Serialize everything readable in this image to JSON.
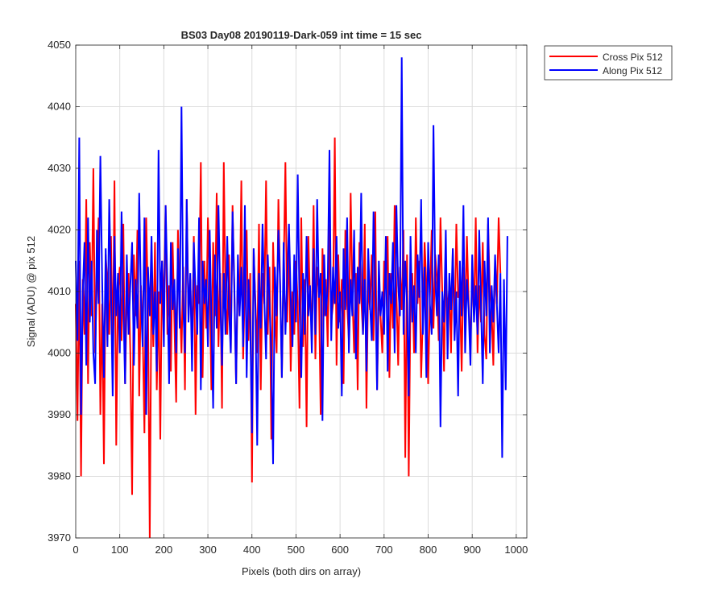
{
  "chart_data": {
    "type": "line",
    "title": "BS03 Day08 20190119-Dark-059 int time = 15 sec",
    "xlabel": "Pixels (both dirs on array)",
    "ylabel": "Signal (ADU) @ pix 512",
    "xlim": [
      0,
      1024
    ],
    "ylim": [
      3970,
      4050
    ],
    "xticks": [
      0,
      100,
      200,
      300,
      400,
      500,
      600,
      700,
      800,
      900,
      1000
    ],
    "yticks": [
      3970,
      3980,
      3990,
      4000,
      4010,
      4020,
      4030,
      4040,
      4050
    ],
    "grid": true,
    "legend_position": "outside-top-right",
    "x_step": 4,
    "series": [
      {
        "name": "Cross Pix 512",
        "color": "#ff0000",
        "values": [
          4008,
          3989,
          4015,
          3980,
          4012,
          4003,
          4025,
          3995,
          4018,
          4006,
          4030,
          4000,
          4012,
          4022,
          3990,
          4008,
          3982,
          4016,
          4011,
          4003,
          4019,
          3999,
          4028,
          3985,
          4010,
          4014,
          4002,
          4021,
          3995,
          4009,
          4013,
          4000,
          3977,
          4016,
          4006,
          4020,
          3993,
          4011,
          4004,
          3987,
          4022,
          4008,
          3970,
          4013,
          4001,
          4018,
          3994,
          4010,
          3986,
          4015,
          4007,
          4024,
          4003,
          4011,
          3997,
          4018,
          4005,
          3992,
          4020,
          4009,
          4000,
          4014,
          3994,
          4025,
          4006,
          4012,
          4001,
          4019,
          3990,
          4011,
          4008,
          4031,
          3996,
          4015,
          4004,
          4022,
          4011,
          3994,
          4018,
          4006,
          4026,
          4001,
          4013,
          3991,
          4031,
          4009,
          4003,
          4016,
          4000,
          4024,
          4010,
          3995,
          4013,
          4006,
          4028,
          3999,
          4011,
          4020,
          4002,
          4013,
          3979,
          4017,
          4008,
          4000,
          4021,
          3994,
          4013,
          4008,
          4028,
          4003,
          4014,
          3986,
          4018,
          4007,
          4000,
          4025,
          4011,
          3996,
          4013,
          4031,
          4005,
          4019,
          3997,
          4010,
          4003,
          4015,
          4008,
          3991,
          4022,
          4001,
          4012,
          3988,
          4019,
          4008,
          4004,
          4024,
          3999,
          4014,
          4010,
          3990,
          4017,
          4006,
          4012,
          4001,
          4021,
          4005,
          4008,
          4035,
          3998,
          4016,
          4005,
          4012,
          3995,
          4020,
          4008,
          4002,
          4026,
          4010,
          4000,
          4013,
          3994,
          4018,
          4009,
          4003,
          4021,
          3991,
          4012,
          4007,
          4016,
          4002,
          4023,
          3994,
          4010,
          4006,
          4000,
          4015,
          4011,
          4019,
          3996,
          4013,
          4004,
          4024,
          4010,
          3998,
          4014,
          4007,
          4020,
          3983,
          4016,
          3980,
          4009,
          4013,
          4000,
          4022,
          4008,
          4015,
          3996,
          4006,
          4018,
          4011,
          3995,
          4009,
          4020,
          4004,
          4016,
          4012,
          4002,
          4022,
          4010,
          3997,
          4015,
          4006,
          4011,
          4000,
          4017,
          4003,
          4021,
          4009,
          4010,
          3997,
          4014,
          4005,
          4019,
          4008,
          4001,
          4013,
          4006,
          4022,
          4000,
          4011,
          4005,
          4018,
          4003,
          3999,
          4021,
          4010,
          4007,
          3998,
          4015,
          4008,
          4022,
          4013
        ]
      },
      {
        "name": "Along Pix 512",
        "color": "#0000ff",
        "values": [
          4015,
          4002,
          4035,
          3990,
          4010,
          4018,
          3998,
          4022,
          4005,
          4015,
          4000,
          3995,
          4020,
          4008,
          4032,
          4012,
          3996,
          4017,
          4001,
          4025,
          4010,
          3993,
          4019,
          4006,
          4013,
          4000,
          4023,
          4008,
          3995,
          4016,
          4003,
          4011,
          4018,
          3998,
          4012,
          4004,
          4026,
          4009,
          4001,
          4022,
          3990,
          4014,
          4006,
          4019,
          4003,
          4010,
          3997,
          4033,
          4008,
          4015,
          4001,
          4024,
          4011,
          3995,
          4018,
          4007,
          4012,
          4000,
          4017,
          4004,
          4040,
          4008,
          4000,
          4025,
          4005,
          4013,
          3997,
          4018,
          4010,
          4003,
          4022,
          3994,
          4015,
          4008,
          4012,
          4001,
          4020,
          4006,
          3991,
          4016,
          4004,
          4024,
          4009,
          3998,
          4013,
          4003,
          4019,
          4007,
          4000,
          4023,
          4011,
          3995,
          4016,
          4006,
          4014,
          4001,
          4024,
          3996,
          4012,
          4005,
          3987,
          4017,
          4007,
          3985,
          4013,
          4004,
          4021,
          4009,
          3999,
          4016,
          4008,
          4000,
          3982,
          4014,
          4006,
          4020,
          4011,
          3996,
          4018,
          4003,
          4012,
          4021,
          4009,
          4001,
          4016,
          4005,
          4029,
          4008,
          3996,
          4013,
          4003,
          4019,
          4006,
          4011,
          4000,
          4017,
          4003,
          4025,
          4009,
          4013,
          3989,
          4016,
          4006,
          4011,
          4033,
          4002,
          4014,
          4008,
          4019,
          4004,
          4010,
          3993,
          4017,
          4007,
          4022,
          4000,
          4012,
          4006,
          4020,
          3999,
          4014,
          4008,
          4026,
          4003,
          4012,
          3997,
          4017,
          4008,
          4002,
          4023,
          4011,
          3994,
          4015,
          4006,
          4010,
          4003,
          4019,
          3997,
          4013,
          4008,
          4018,
          4000,
          4024,
          4011,
          4006,
          4048,
          4003,
          4015,
          4008,
          3993,
          4019,
          4005,
          4011,
          4000,
          4016,
          4009,
          4025,
          4003,
          4014,
          3996,
          4018,
          4008,
          4003,
          4037,
          4012,
          4006,
          4016,
          3988,
          4010,
          4005,
          4020,
          3999,
          4013,
          4007,
          4017,
          4002,
          4010,
          3993,
          4015,
          4006,
          4024,
          4000,
          4012,
          4007,
          3998,
          4016,
          4005,
          4011,
          4003,
          4020,
          4008,
          3995,
          4015,
          4006,
          4022,
          4000,
          4011,
          4005,
          4016,
          4008,
          4000,
          4013,
          3983,
          4012,
          3994,
          4019
        ]
      }
    ]
  }
}
